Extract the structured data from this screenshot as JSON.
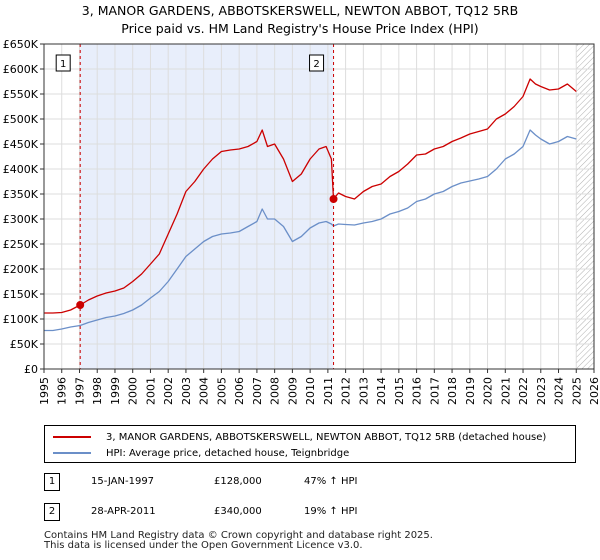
{
  "chart_data": {
    "type": "line",
    "title": "3, MANOR GARDENS, ABBOTSKERSWELL, NEWTON ABBOT, TQ12 5RB",
    "subtitle": "Price paid vs. HM Land Registry's House Price Index (HPI)",
    "xlabel": "",
    "ylabel": "",
    "xlim": [
      1995,
      2026
    ],
    "ylim": [
      0,
      650000
    ],
    "x_ticks": [
      "1995",
      "1996",
      "1997",
      "1998",
      "1999",
      "2000",
      "2001",
      "2002",
      "2003",
      "2004",
      "2005",
      "2006",
      "2007",
      "2008",
      "2009",
      "2010",
      "2011",
      "2012",
      "2013",
      "2014",
      "2015",
      "2016",
      "2017",
      "2018",
      "2019",
      "2020",
      "2021",
      "2022",
      "2023",
      "2024",
      "2025",
      "2026"
    ],
    "y_ticks": [
      {
        "value": 0,
        "label": "£0"
      },
      {
        "value": 50000,
        "label": "£50K"
      },
      {
        "value": 100000,
        "label": "£100K"
      },
      {
        "value": 150000,
        "label": "£150K"
      },
      {
        "value": 200000,
        "label": "£200K"
      },
      {
        "value": 250000,
        "label": "£250K"
      },
      {
        "value": 300000,
        "label": "£300K"
      },
      {
        "value": 350000,
        "label": "£350K"
      },
      {
        "value": 400000,
        "label": "£400K"
      },
      {
        "value": 450000,
        "label": "£450K"
      },
      {
        "value": 500000,
        "label": "£500K"
      },
      {
        "value": 550000,
        "label": "£550K"
      },
      {
        "value": 600000,
        "label": "£600K"
      },
      {
        "value": 650000,
        "label": "£650K"
      }
    ],
    "grid": true,
    "shaded_period": [
      1997.04,
      2011.32
    ],
    "hatched_from": 2025.0,
    "series": [
      {
        "name": "3, MANOR GARDENS, ABBOTSKERSWELL, NEWTON ABBOT, TQ12 5RB (detached house)",
        "color": "#cc0000",
        "x": [
          1995.0,
          1995.5,
          1996.0,
          1996.5,
          1997.04,
          1997.5,
          1998.0,
          1998.5,
          1999.0,
          1999.5,
          2000.0,
          2000.5,
          2001.0,
          2001.5,
          2002.0,
          2002.5,
          2003.0,
          2003.5,
          2004.0,
          2004.5,
          2005.0,
          2005.5,
          2006.0,
          2006.5,
          2007.0,
          2007.3,
          2007.6,
          2008.0,
          2008.5,
          2009.0,
          2009.5,
          2010.0,
          2010.5,
          2010.9,
          2011.2,
          2011.32,
          2011.6,
          2012.0,
          2012.5,
          2013.0,
          2013.5,
          2014.0,
          2014.5,
          2015.0,
          2015.5,
          2016.0,
          2016.5,
          2017.0,
          2017.5,
          2018.0,
          2018.5,
          2019.0,
          2019.5,
          2020.0,
          2020.5,
          2021.0,
          2021.5,
          2022.0,
          2022.4,
          2022.7,
          2023.0,
          2023.5,
          2024.0,
          2024.5,
          2025.0
        ],
        "y": [
          112000,
          112000,
          113000,
          118000,
          128000,
          138000,
          146000,
          152000,
          156000,
          162000,
          175000,
          190000,
          210000,
          230000,
          270000,
          310000,
          355000,
          375000,
          400000,
          420000,
          435000,
          438000,
          440000,
          445000,
          455000,
          478000,
          445000,
          450000,
          420000,
          375000,
          390000,
          420000,
          440000,
          445000,
          420000,
          340000,
          352000,
          345000,
          340000,
          355000,
          365000,
          370000,
          385000,
          395000,
          410000,
          428000,
          430000,
          440000,
          445000,
          455000,
          462000,
          470000,
          475000,
          480000,
          500000,
          510000,
          525000,
          545000,
          580000,
          570000,
          565000,
          558000,
          560000,
          570000,
          555000
        ]
      },
      {
        "name": "HPI: Average price, detached house, Teignbridge",
        "color": "#6b8fc8",
        "x": [
          1995.0,
          1995.5,
          1996.0,
          1996.5,
          1997.04,
          1997.5,
          1998.0,
          1998.5,
          1999.0,
          1999.5,
          2000.0,
          2000.5,
          2001.0,
          2001.5,
          2002.0,
          2002.5,
          2003.0,
          2003.5,
          2004.0,
          2004.5,
          2005.0,
          2005.5,
          2006.0,
          2006.5,
          2007.0,
          2007.3,
          2007.6,
          2008.0,
          2008.5,
          2009.0,
          2009.5,
          2010.0,
          2010.5,
          2010.9,
          2011.2,
          2011.32,
          2011.6,
          2012.0,
          2012.5,
          2013.0,
          2013.5,
          2014.0,
          2014.5,
          2015.0,
          2015.5,
          2016.0,
          2016.5,
          2017.0,
          2017.5,
          2018.0,
          2018.5,
          2019.0,
          2019.5,
          2020.0,
          2020.5,
          2021.0,
          2021.5,
          2022.0,
          2022.4,
          2022.7,
          2023.0,
          2023.5,
          2024.0,
          2024.5,
          2025.0
        ],
        "y": [
          77000,
          77000,
          80000,
          84000,
          87000,
          93000,
          98000,
          103000,
          106000,
          111000,
          118000,
          128000,
          142000,
          155000,
          175000,
          200000,
          225000,
          240000,
          255000,
          265000,
          270000,
          272000,
          275000,
          285000,
          295000,
          320000,
          300000,
          300000,
          285000,
          255000,
          265000,
          282000,
          292000,
          295000,
          290000,
          286000,
          290000,
          289000,
          288000,
          292000,
          295000,
          300000,
          310000,
          315000,
          322000,
          335000,
          340000,
          350000,
          355000,
          365000,
          372000,
          376000,
          380000,
          385000,
          400000,
          420000,
          430000,
          445000,
          478000,
          468000,
          460000,
          450000,
          455000,
          465000,
          460000
        ]
      }
    ],
    "annotations": [
      {
        "label": "1",
        "x": 1997.04,
        "y": 128000
      },
      {
        "label": "2",
        "x": 2011.32,
        "y": 340000
      }
    ]
  },
  "legend": {
    "property_label": "3, MANOR GARDENS, ABBOTSKERSWELL, NEWTON ABBOT, TQ12 5RB (detached house)",
    "hpi_label": "HPI: Average price, detached house, Teignbridge"
  },
  "events": [
    {
      "badge": "1",
      "date": "15-JAN-1997",
      "price": "£128,000",
      "hpi": "47% ↑ HPI"
    },
    {
      "badge": "2",
      "date": "28-APR-2011",
      "price": "£340,000",
      "hpi": "19% ↑ HPI"
    }
  ],
  "footer": {
    "line1": "Contains HM Land Registry data © Crown copyright and database right 2025.",
    "line2": "This data is licensed under the Open Government Licence v3.0."
  }
}
